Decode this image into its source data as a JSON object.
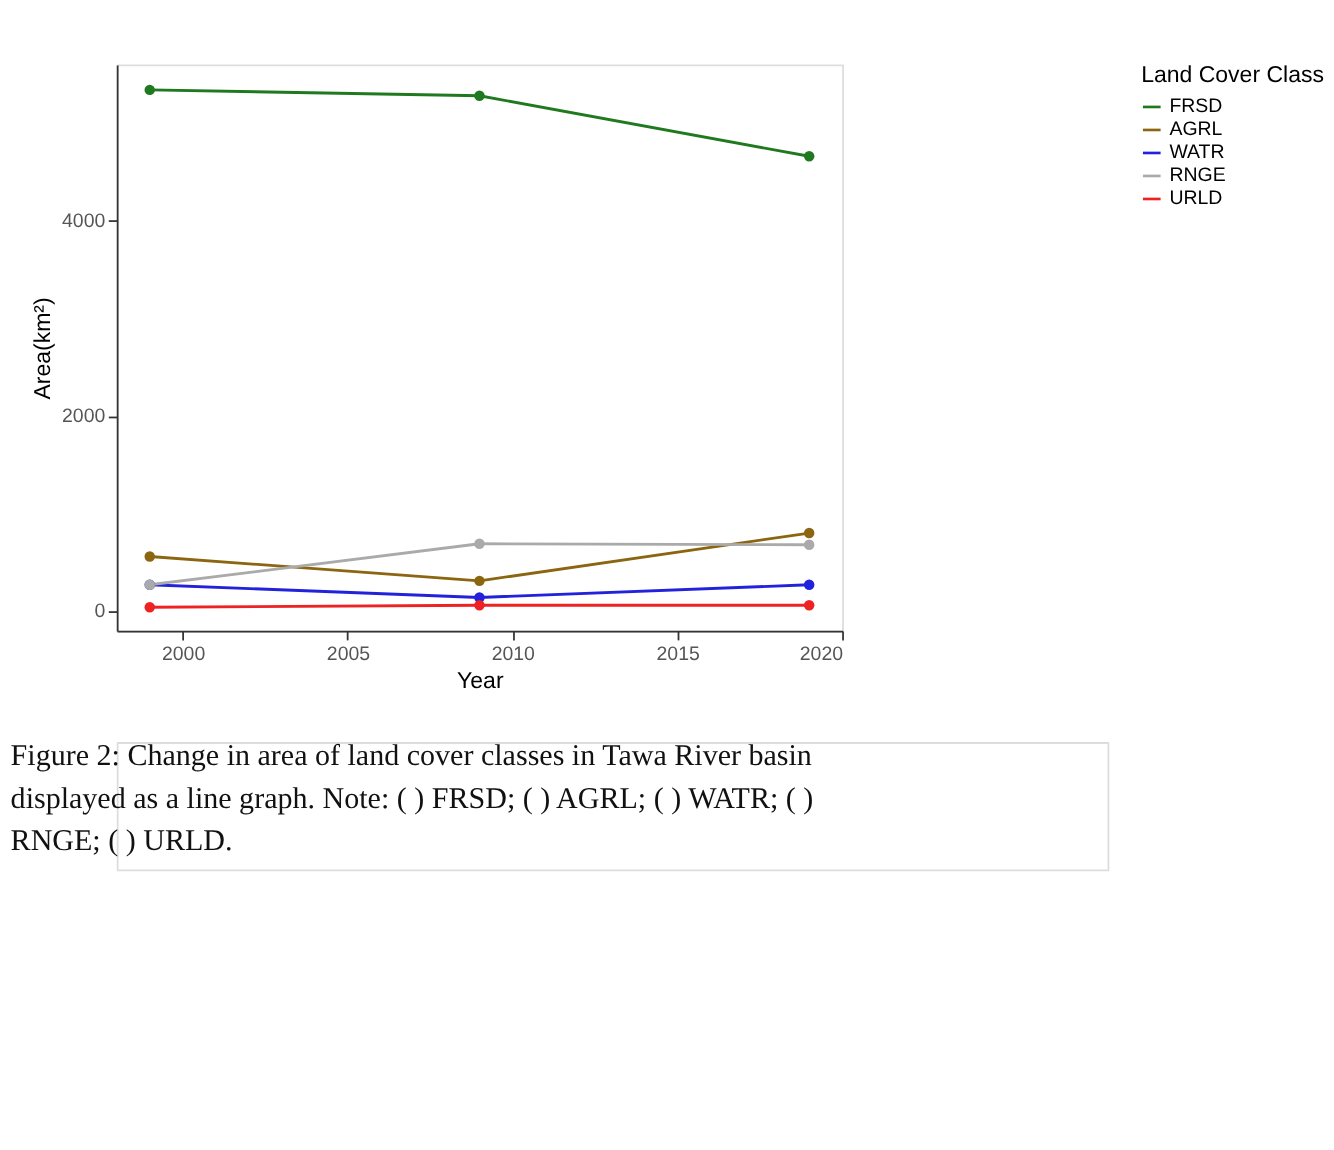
{
  "chart_data": {
    "type": "line",
    "xlabel": "Year",
    "ylabel": "Area(km²)",
    "legend_title": "Land Cover Class",
    "x": [
      1999,
      2009,
      2019
    ],
    "series": [
      {
        "name": "FRSD",
        "color": "#1f7a1f",
        "values": [
          5340,
          5280,
          4660
        ]
      },
      {
        "name": "AGRL",
        "color": "#8b6510",
        "values": [
          560,
          310,
          800
        ]
      },
      {
        "name": "WATR",
        "color": "#2222dd",
        "values": [
          270,
          140,
          270
        ]
      },
      {
        "name": "RNGE",
        "color": "#aaaaaa",
        "values": [
          270,
          690,
          680
        ]
      },
      {
        "name": "URLD",
        "color": "#ee2222",
        "values": [
          40,
          60,
          60
        ]
      }
    ],
    "xlim": [
      1998,
      2020
    ],
    "xticks": [
      2000,
      2005,
      2010,
      2015,
      2020
    ],
    "ylim": [
      -200,
      5600
    ],
    "yticks": [
      0,
      2000,
      4000
    ],
    "grid": false,
    "legend": "right",
    "marker": "circle",
    "line_style": "solid",
    "annotations": [
      "Figure 2: Change in area of land cover classes in Tawa River basin displayed as a line graph. Note: (  ) FRSD; (  ) AGRL; (  ) WATR; (  ) RNGE; (  ) URLD."
    ]
  }
}
